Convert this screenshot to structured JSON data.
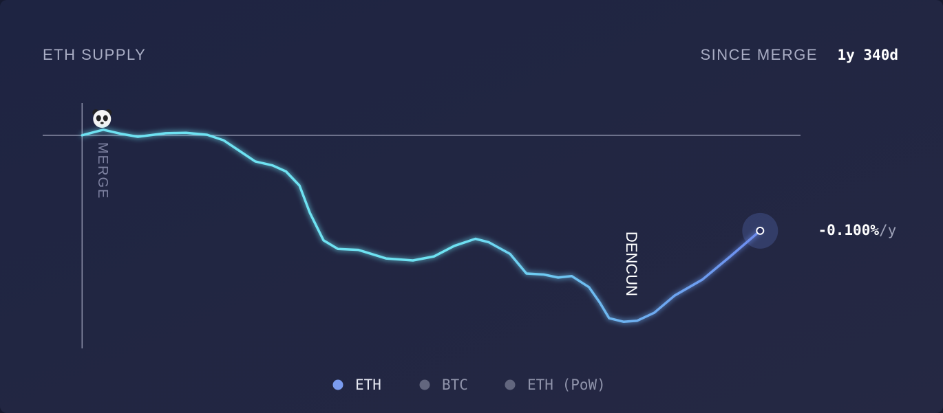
{
  "chart_data": {
    "type": "line",
    "title": "ETH SUPPLY",
    "period_label": "SINCE MERGE",
    "period": "1y 340d",
    "rate": "-0.100%",
    "rate_unit": "/y",
    "x": [
      0,
      22,
      40,
      58,
      87,
      108,
      130,
      147,
      162,
      180,
      198,
      212,
      226,
      237,
      251,
      266,
      287,
      316,
      344,
      366,
      387,
      409,
      423,
      445,
      462,
      480,
      495,
      509,
      527,
      538,
      548,
      563,
      577,
      595,
      616,
      645,
      674,
      705
    ],
    "series": [
      {
        "name": "ETH",
        "color": "#6d8cef",
        "gradient_start": "#6ee2f2",
        "values": [
          0,
          0.011,
          0.003,
          -0.003,
          0.004,
          0.005,
          0.001,
          -0.01,
          -0.029,
          -0.052,
          -0.06,
          -0.072,
          -0.1,
          -0.155,
          -0.209,
          -0.226,
          -0.228,
          -0.245,
          -0.249,
          -0.241,
          -0.22,
          -0.206,
          -0.213,
          -0.236,
          -0.275,
          -0.277,
          -0.283,
          -0.28,
          -0.302,
          -0.332,
          -0.364,
          -0.371,
          -0.369,
          -0.353,
          -0.319,
          -0.287,
          -0.241,
          -0.19
        ]
      }
    ],
    "legend": [
      {
        "name": "ETH",
        "color": "#7b9cf0"
      },
      {
        "name": "BTC",
        "color": "#62667e"
      },
      {
        "name": "ETH (PoW)",
        "color": "#62667e"
      }
    ],
    "annotations": [
      {
        "x": 0,
        "text": "MERGE"
      },
      {
        "x": 568,
        "text": "DENCUN"
      }
    ],
    "xlim": [
      -41,
      747
    ],
    "ylim": [
      -0.424,
      0.064
    ]
  }
}
